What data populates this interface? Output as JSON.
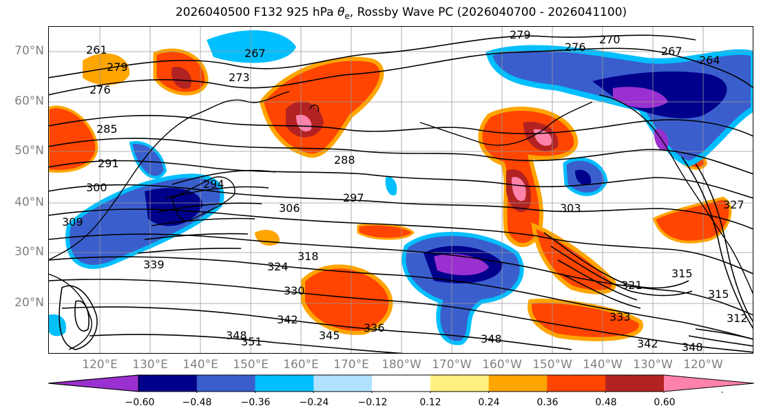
{
  "title": {
    "prefix": "2026040500 F132 925 hPa ",
    "symbol": "θ",
    "subscript": "e",
    "suffix": ", Rossby Wave PC (2026040700 - 2026041100)"
  },
  "map": {
    "lat_labels": [
      "70°N",
      "60°N",
      "50°N",
      "40°N",
      "30°N",
      "20°N"
    ],
    "lon_labels": [
      "120°E",
      "130°E",
      "140°E",
      "150°E",
      "160°E",
      "170°E",
      "180°W",
      "170°W",
      "160°W",
      "150°W",
      "140°W",
      "130°W",
      "120°W"
    ],
    "contour_labels": [
      "294",
      "279",
      "267",
      "261",
      "273",
      "276",
      "270",
      "267",
      "264",
      "279",
      "276",
      "285",
      "291",
      "300",
      "306",
      "297",
      "288",
      "303",
      "309",
      "318",
      "324",
      "330",
      "339",
      "342",
      "345",
      "348",
      "351",
      "336",
      "348",
      "333",
      "342",
      "348",
      "321",
      "315",
      "312",
      "315",
      "327"
    ]
  },
  "colorbar": {
    "tick_labels": [
      "−0.60",
      "−0.48",
      "−0.36",
      "−0.24",
      "−0.12",
      "0.12",
      "0.24",
      "0.36",
      "0.48",
      "0.60"
    ],
    "colors": [
      "#9b30d0",
      "#00008b",
      "#3a5fcd",
      "#00bfff",
      "#b0e2ff",
      "#ffffff",
      "#fff080",
      "#ffa500",
      "#ff4500",
      "#b22222",
      "#ff82ab"
    ]
  }
}
